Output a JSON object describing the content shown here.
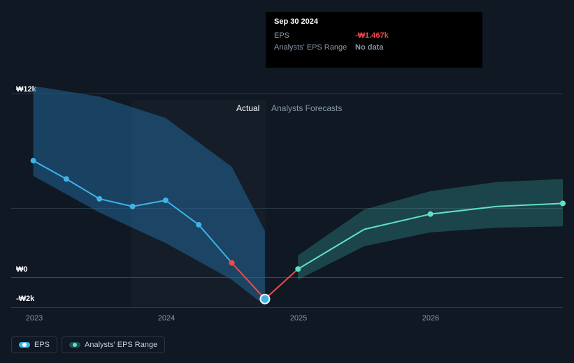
{
  "chart": {
    "type": "line",
    "background": "#0f1823",
    "grid_color": "#2a3744",
    "text_color_muted": "#8a98a8",
    "text_color": "#ffffff",
    "y_axis": {
      "min": -2000,
      "max": 12000,
      "ticks": [
        {
          "value": 12000,
          "label": "₩12k"
        },
        {
          "value": 6000,
          "label": ""
        },
        {
          "value": 0,
          "label": "₩0"
        },
        {
          "value": -2000,
          "label": "-₩2k"
        }
      ]
    },
    "x_axis": {
      "ticks": [
        "2023",
        "2024",
        "2025",
        "2026"
      ]
    },
    "regions": {
      "actual_label": "Actual",
      "forecast_label": "Analysts Forecasts"
    },
    "tooltip": {
      "date": "Sep 30 2024",
      "rows": [
        {
          "label": "EPS",
          "value": "-₩1.467k",
          "color": "#f14a4a"
        },
        {
          "label": "Analysts' EPS Range",
          "value": "No data",
          "color": "#8a98a8"
        }
      ]
    },
    "legend": {
      "eps": "EPS",
      "range": "Analysts' EPS Range"
    },
    "series": {
      "eps_points": [
        {
          "x": 0.04,
          "y": 7600,
          "color": "#3eb3e8"
        },
        {
          "x": 0.1,
          "y": 6400,
          "color": "#3eb3e8"
        },
        {
          "x": 0.16,
          "y": 5100,
          "color": "#3eb3e8"
        },
        {
          "x": 0.22,
          "y": 4600,
          "color": "#3eb3e8"
        },
        {
          "x": 0.28,
          "y": 5000,
          "color": "#3eb3e8"
        },
        {
          "x": 0.34,
          "y": 3400,
          "color": "#3eb3e8"
        },
        {
          "x": 0.4,
          "y": 900,
          "color": "#f14a4a"
        },
        {
          "x": 0.46,
          "y": -1467,
          "color": "#3eb3e8",
          "highlight": true
        }
      ],
      "eps_color_positive": "#3eb3e8",
      "eps_color_negative": "#f14a4a",
      "forecast_line": [
        {
          "x": 0.46,
          "y": -1467
        },
        {
          "x": 0.52,
          "y": 500
        },
        {
          "x": 0.64,
          "y": 3100
        },
        {
          "x": 0.76,
          "y": 4100
        },
        {
          "x": 0.88,
          "y": 4600
        },
        {
          "x": 1.0,
          "y": 4800
        }
      ],
      "forecast_points": [
        {
          "x": 0.52,
          "y": 500
        },
        {
          "x": 0.76,
          "y": 4100
        },
        {
          "x": 1.0,
          "y": 4800
        }
      ],
      "forecast_color": "#62e1c1",
      "actual_band": {
        "top": [
          [
            0.04,
            12500
          ],
          [
            0.16,
            11800
          ],
          [
            0.28,
            10400
          ],
          [
            0.4,
            7200
          ],
          [
            0.46,
            3000
          ]
        ],
        "bottom": [
          [
            0.04,
            6600
          ],
          [
            0.16,
            4200
          ],
          [
            0.28,
            2200
          ],
          [
            0.4,
            -200
          ],
          [
            0.46,
            -1900
          ]
        ],
        "fill": "rgba(35,100,150,0.55)"
      },
      "forecast_band": {
        "top": [
          [
            0.52,
            1400
          ],
          [
            0.64,
            4400
          ],
          [
            0.76,
            5600
          ],
          [
            0.88,
            6200
          ],
          [
            1.0,
            6400
          ]
        ],
        "bottom": [
          [
            0.52,
            -200
          ],
          [
            0.64,
            2000
          ],
          [
            0.76,
            2900
          ],
          [
            0.88,
            3200
          ],
          [
            1.0,
            3300
          ]
        ],
        "fill": "rgba(58,176,169,0.30)"
      }
    },
    "marker_radius": 4,
    "line_width": 2
  }
}
